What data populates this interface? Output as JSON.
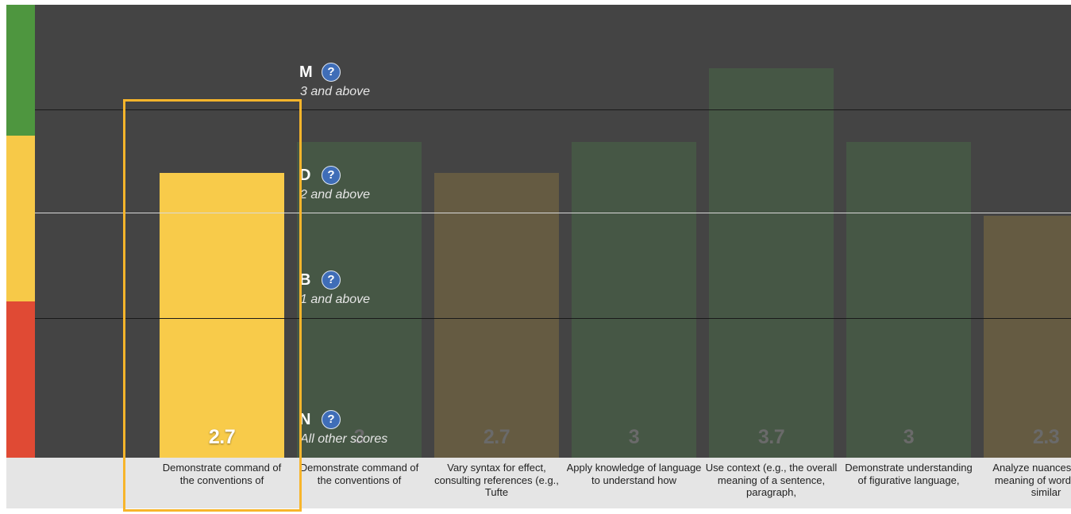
{
  "colors": {
    "plot_bg": "#444444",
    "strip_high": "#4e963f",
    "strip_mid": "#f7c948",
    "strip_low": "#e04a34",
    "bar_highlight": "#f8cb4a",
    "bar_green": "#465745",
    "bar_olive": "#655b42",
    "value_highlight": "#ffffff",
    "value_dim": "#6a6a6a",
    "highlight_border": "#f7b52b"
  },
  "levels": [
    {
      "code": "M",
      "desc": "3 and above",
      "threshold": 3
    },
    {
      "code": "D",
      "desc": "2 and above",
      "threshold": 2
    },
    {
      "code": "B",
      "desc": "1 and above",
      "threshold": 1
    },
    {
      "code": "N",
      "desc": "All other scores"
    }
  ],
  "help_glyph": "?",
  "chart_data": {
    "type": "bar",
    "ylim": [
      0,
      4.3
    ],
    "grid": false,
    "highlighted_index": 0,
    "categories": [
      "Demonstrate command of the conventions of",
      "Demonstrate command of the conventions of",
      "Vary syntax for effect, consulting references (e.g., Tufte",
      "Apply knowledge of language to understand how",
      "Use context (e.g., the overall meaning of a sentence, paragraph,",
      "Demonstrate understanding of figurative language,",
      "Analyze nuances in the meaning of words with similar"
    ],
    "values": [
      2.7,
      3,
      2.7,
      3,
      3.7,
      3,
      2.3
    ],
    "value_labels": [
      "2.7",
      "3",
      "2.7",
      "3",
      "3.7",
      "3",
      "2.3"
    ]
  }
}
